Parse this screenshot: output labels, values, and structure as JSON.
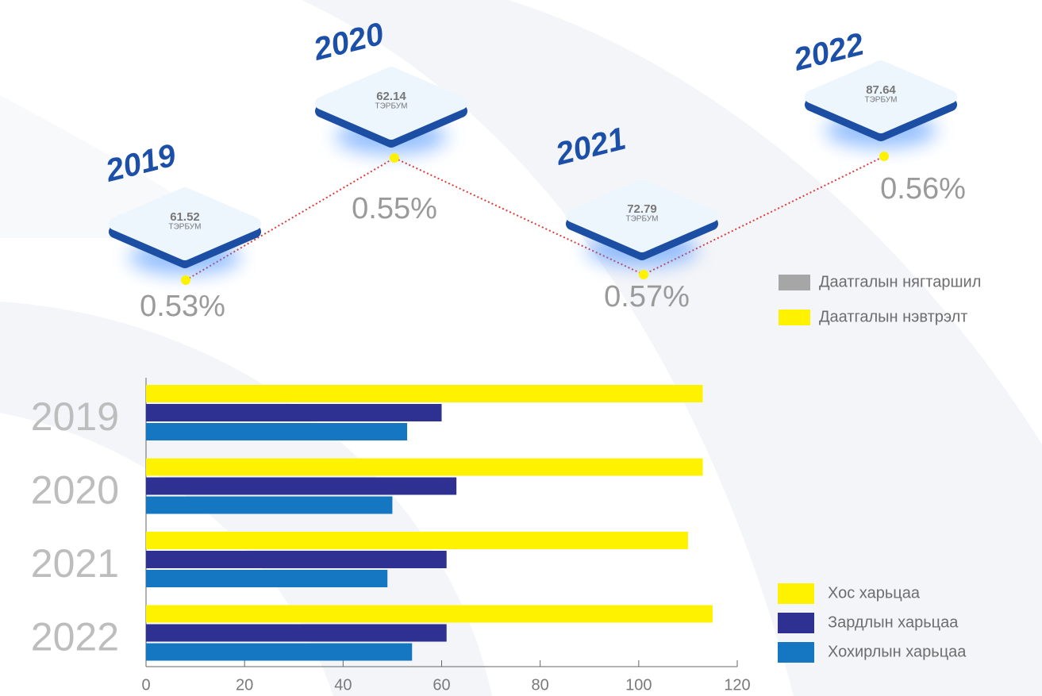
{
  "chart_data": [
    {
      "type": "line",
      "categories": [
        "2019",
        "2020",
        "2021",
        "2022"
      ],
      "unit": "ТЭРБУМ",
      "series": [
        {
          "name": "Даатгалын нягтаршил",
          "color": "#a6a6a6",
          "values": [
            61.52,
            62.14,
            72.79,
            87.64
          ]
        },
        {
          "name": "Даатгалын нэвтрэлт",
          "color": "#fff200",
          "values": [
            0.53,
            0.55,
            0.57,
            0.56
          ],
          "value_labels": [
            "0.53%",
            "0.55%",
            "0.57%",
            "0.56%"
          ]
        }
      ]
    },
    {
      "type": "hbar",
      "categories": [
        "2019",
        "2020",
        "2021",
        "2022"
      ],
      "series": [
        {
          "name": "Хос харьцаа",
          "color": "#fff200",
          "values": [
            113,
            113,
            110,
            115
          ]
        },
        {
          "name": "Зардлын харьцаа",
          "color": "#2e3192",
          "values": [
            60,
            63,
            61,
            61
          ]
        },
        {
          "name": "Хохирлын харьцаа",
          "color": "#1577c2",
          "values": [
            53,
            50,
            49,
            54
          ]
        }
      ],
      "xlim": [
        0,
        120
      ],
      "xticks": [
        0,
        20,
        40,
        60,
        80,
        100,
        120
      ]
    }
  ]
}
